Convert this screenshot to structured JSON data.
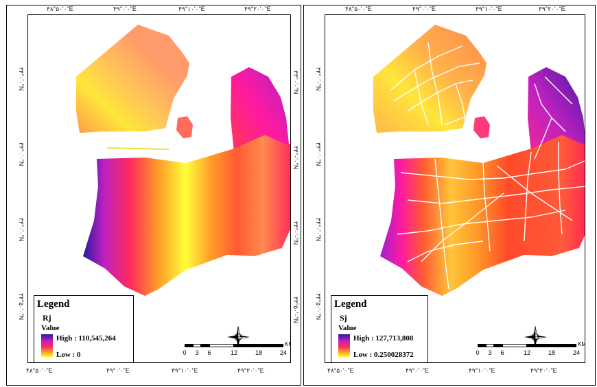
{
  "maps": [
    {
      "id": "left",
      "top_ticks": [
        "۴۸°۵۰'۰\"E",
        "۴۹°۰'۰\"E",
        "۴۹°۱۰'۰\"E",
        "۴۹°۲۰'۰\"E"
      ],
      "bottom_ticks": [
        "۴۸°۵۰'۰\"E",
        "۴۹°۰'۰\"E",
        "۴۹°۱۰'۰\"E",
        "۴۹°۲۰'۰\"E"
      ],
      "left_ticks": [
        "۳۴°۰'۰\"N",
        "۳۴°۰'۰\"N",
        "۳۴°۰'۰\"N",
        "۳۴°۵۰'۰\"N"
      ],
      "right_ticks": [
        "۳۴°۰'۰\"N",
        "۳۴°۰'۰\"N",
        "۳۴°۰'۰\"N",
        "۳۴°۵۰'۰\"N"
      ],
      "legend": {
        "title": "Legend",
        "layer": "Rj",
        "value_label": "Value",
        "high": "High : 110,545,264",
        "low": "Low : 0"
      },
      "scalebar": {
        "labels": [
          "0",
          "3",
          "6",
          "12",
          "18",
          "24"
        ],
        "unit": "KM"
      },
      "has_roads": false
    },
    {
      "id": "right",
      "top_ticks": [
        "۴۸°۵۰'۰\"E",
        "۴۹°۰'۰\"E",
        "۴۹°۱۰'۰\"E",
        "۴۹°۲۰'۰\"E"
      ],
      "bottom_ticks": [
        "۴۸°۵۰'۰\"E",
        "۴۹°۰'۰\"E",
        "۴۹°۱۰'۰\"E",
        "۴۹°۲۰'۰\"E"
      ],
      "left_ticks": [
        "۳۴°۰'۰\"N",
        "۳۴°۰'۰\"N",
        "۳۴°۰'۰\"N",
        "۳۴°۵۰'۰\"N"
      ],
      "right_ticks": [
        "۳۴°۰'۰\"N",
        "۳۴°۰'۰\"N",
        "۳۴°۰'۰\"N",
        "۳۴°۵۰'۰\"N"
      ],
      "legend": {
        "title": "Legend",
        "layer": "Sj",
        "value_label": "Value",
        "high": "High : 127,713,808",
        "low": "Low : 0.250028372"
      },
      "scalebar": {
        "labels": [
          "0",
          "3",
          "6",
          "12",
          "18",
          "24"
        ],
        "unit": "KM"
      },
      "has_roads": true
    }
  ],
  "colors": {
    "high": "#2a1a9e",
    "upper": "#c020c0",
    "mid": "#ff2b5c",
    "lower": "#ff9a28",
    "low": "#ffff3a",
    "roads": "#ffffff"
  },
  "icons": [
    "north-arrow-icon"
  ]
}
